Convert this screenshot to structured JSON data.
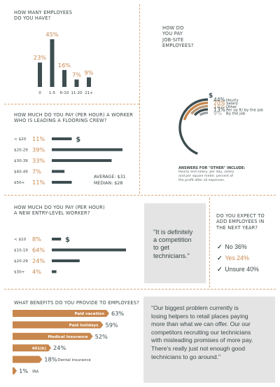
{
  "colors": {
    "dark": "#3d4d50",
    "copper": "#c8874d",
    "tan": "#b89977",
    "gray": "#9aa1a3",
    "panel": "#e4e4e4"
  },
  "employees": {
    "title_l1": "HOW MANY EMPLOYEES",
    "title_l2": "DO YOU HAVE?"
  },
  "payment": {
    "title_l1": "HOW DO",
    "title_l2": "YOU PAY",
    "title_l3": "JOB-SITE",
    "title_l4": "EMPLOYEES?",
    "dollar": "$",
    "note_title": "ANSWERS FOR \"OTHER\" INCLUDE:",
    "note_l1": "Hourly and salary, per day, salary",
    "note_l2": "and per square meter, percent of",
    "note_l3": "the profit after all expenses."
  },
  "crew_lead": {
    "title_l1": "HOW MUCH DO YOU PAY (PER HOUR) A WORKER",
    "title_l2": "WHO IS LEADING A FLOORING CREW?",
    "dollar": "$",
    "average": "AVERAGE:  $31",
    "median": "MEDIAN:  $28"
  },
  "entry": {
    "title_l1": "HOW MUCH DO YOU PAY (PER HOUR)",
    "title_l2": "A NEW ENTRY-LEVEL WORKER?",
    "dollar": "$"
  },
  "quote1": {
    "l1": "\"It is definitely",
    "l2": "a competition",
    "l3": "to get",
    "l4": "technicians.\""
  },
  "add_employees": {
    "title_l1": "DO YOU EXPECT TO",
    "title_l2": "ADD EMPLOYEES IN",
    "title_l3": "THE NEXT YEAR?",
    "check": "✓",
    "options": [
      {
        "label": "No 36%",
        "color": "#3c4647"
      },
      {
        "label": "Yes 24%",
        "color": "#c8874d"
      },
      {
        "label": "Unsure 40%",
        "color": "#3c4647"
      }
    ]
  },
  "benefits": {
    "title": "WHAT BENEFITS DO YOU PROVIDE TO EMPLOYEES?"
  },
  "quote2": {
    "l1": "\"Our biggest problem currently is",
    "l2": "losing helpers to retail places paying",
    "l3": "more than what we can offer. Our our",
    "l4": "competitors recruiting our technicians",
    "l5": "with misleading promises of more pay.",
    "l6": "There's really just not enough good",
    "l7": "technicians to go around.\""
  },
  "chart_data": [
    {
      "type": "bar",
      "title": "HOW MANY EMPLOYEES DO YOU HAVE?",
      "categories": [
        "0",
        "1-5",
        "6-10",
        "11-20",
        "21+"
      ],
      "values": [
        23,
        45,
        16,
        7,
        9
      ],
      "labels": [
        "23%",
        "45%",
        "16%",
        "7%",
        "9%"
      ],
      "ylim": [
        0,
        45
      ]
    },
    {
      "type": "pie",
      "title": "HOW DO YOU PAY JOB-SITE EMPLOYEES?",
      "categories": [
        "Hourly",
        "Salary",
        "Other",
        "Per sq ft/ by the job",
        "By the job"
      ],
      "values": [
        44,
        20,
        14,
        13,
        9
      ],
      "labels": [
        "44%",
        "20%",
        "14%",
        "13%",
        "9%"
      ]
    },
    {
      "type": "bar",
      "title": "HOW MUCH DO YOU PAY (PER HOUR) A WORKER WHO IS LEADING A FLOORING CREW?",
      "categories": [
        "< $20",
        "$20-29",
        "$30-39",
        "$40-49",
        "$50+"
      ],
      "values": [
        11,
        39,
        33,
        7,
        11
      ],
      "labels": [
        "11%",
        "39%",
        "33%",
        "7%",
        "11%"
      ],
      "ylim": [
        0,
        39
      ]
    },
    {
      "type": "bar",
      "title": "HOW MUCH DO YOU PAY (PER HOUR) A NEW ENTRY-LEVEL WORKER?",
      "categories": [
        "< $10",
        "$10-19",
        "$20-29",
        "$30+"
      ],
      "values": [
        8,
        64,
        24,
        4
      ],
      "labels": [
        "8%",
        "64%",
        "24%",
        "4%"
      ],
      "ylim": [
        0,
        64
      ]
    },
    {
      "type": "bar",
      "title": "WHAT BENEFITS DO YOU PROVIDE TO EMPLOYEES?",
      "categories": [
        "Paid vacation",
        "Paid holidays",
        "Medical Insurance",
        "401(k)",
        "Dental insurance",
        "IRA"
      ],
      "values": [
        63,
        59,
        52,
        24,
        18,
        1
      ],
      "labels": [
        "63%",
        "59%",
        "52%",
        "24%",
        "18%",
        "1%"
      ],
      "ylim": [
        0,
        63
      ]
    }
  ]
}
